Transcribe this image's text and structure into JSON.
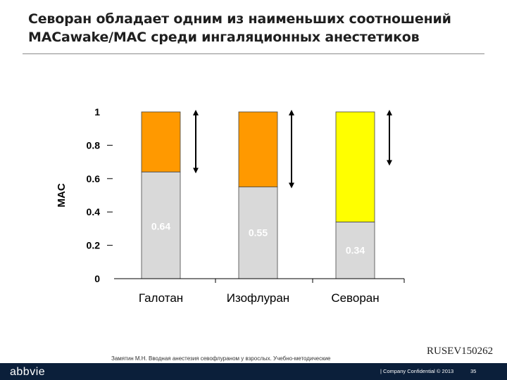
{
  "header": {
    "title": "Севоран обладает одним из наименьших соотношений MACawake/MAC среди ингаляционных анестетиков"
  },
  "chart_data": {
    "type": "bar",
    "stacked": true,
    "ylabel": "MAC",
    "ylim": [
      0,
      1
    ],
    "yticks": [
      {
        "value": 0,
        "label": "0"
      },
      {
        "value": 0.2,
        "label": "0.2"
      },
      {
        "value": 0.4,
        "label": "0.4"
      },
      {
        "value": 0.6,
        "label": "0.6"
      },
      {
        "value": 0.8,
        "label": "0.8"
      },
      {
        "value": 1,
        "label": "1"
      }
    ],
    "categories": [
      "Галотан",
      "Изофлуран",
      "Севоран"
    ],
    "series": [
      {
        "name": "MACawake",
        "values": [
          0.64,
          0.55,
          0.34
        ],
        "labels": [
          "0.64",
          "0.55",
          "0.34"
        ],
        "color": "#d9d9d9"
      },
      {
        "name": "MAC",
        "values": [
          0.36,
          0.45,
          0.66
        ],
        "colors": [
          "#ff9900",
          "#ff9900",
          "#ffff00"
        ]
      }
    ]
  },
  "footer": {
    "citation": "Замятин М.Н. Вводная анестезия севофлураном у взрослых. Учебно-методические рекомендации. Москва 2007",
    "doc_id": "RUSEV150262",
    "logo": "abbvie",
    "confidential": "| Company Confidential © 2013",
    "page": "35"
  },
  "colors": {
    "footer_bar": "#0b1f3a",
    "accent_orange": "#ff9900",
    "accent_yellow": "#ffff00",
    "bar_base": "#d9d9d9"
  }
}
